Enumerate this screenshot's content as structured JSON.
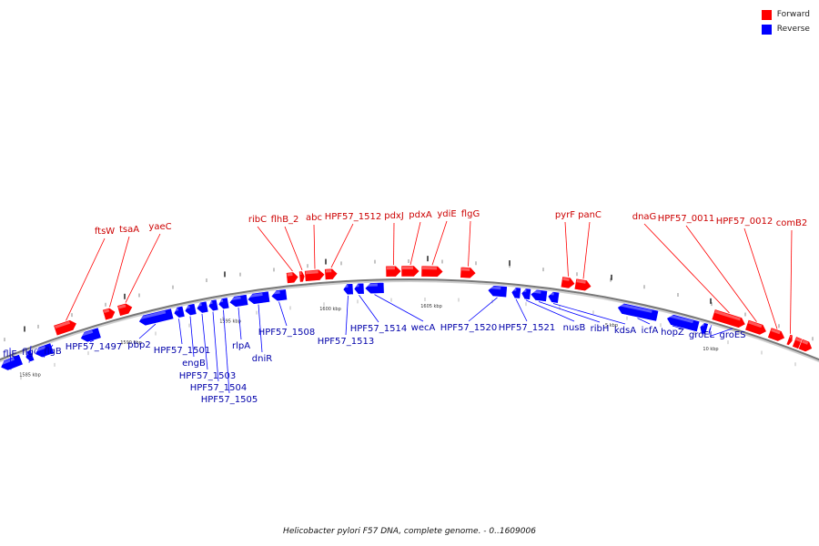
{
  "caption": "Helicobacter pylori F57 DNA, complete genome. - 0..1609006",
  "legend": {
    "forward_label": "Forward",
    "reverse_label": "Reverse",
    "forward_color": "#ff0000",
    "reverse_color": "#0000ff"
  },
  "axis_labels": [
    "1585 kbp",
    "1590 kbp",
    "1595 kbp",
    "1600 kbp",
    "1605 kbp",
    "5 kbp",
    "10 kbp"
  ],
  "forward_genes": [
    "ftsW",
    "tsaA",
    "yaeC",
    "ribC",
    "flhB_2",
    "abc",
    "HPF57_1512",
    "pdxJ",
    "pdxA",
    "ydiE",
    "flgG",
    "pyrF",
    "panC",
    "dnaG",
    "HPF57_0011",
    "HPF57_0012",
    "comB2"
  ],
  "reverse_genes": [
    "fliE",
    "flgC",
    "flgB",
    "HPF57_1497",
    "pbp2",
    "HPF57_1501",
    "engB",
    "HPF57_1503",
    "HPF57_1504",
    "HPF57_1505",
    "rlpA",
    "dniR",
    "HPF57_1508",
    "HPF57_1513",
    "HPF57_1514",
    "wecA",
    "HPF57_1520",
    "HPF57_1521",
    "nusB",
    "ribH",
    "kdsA",
    "icfA",
    "hopZ",
    "groEL",
    "groES"
  ]
}
